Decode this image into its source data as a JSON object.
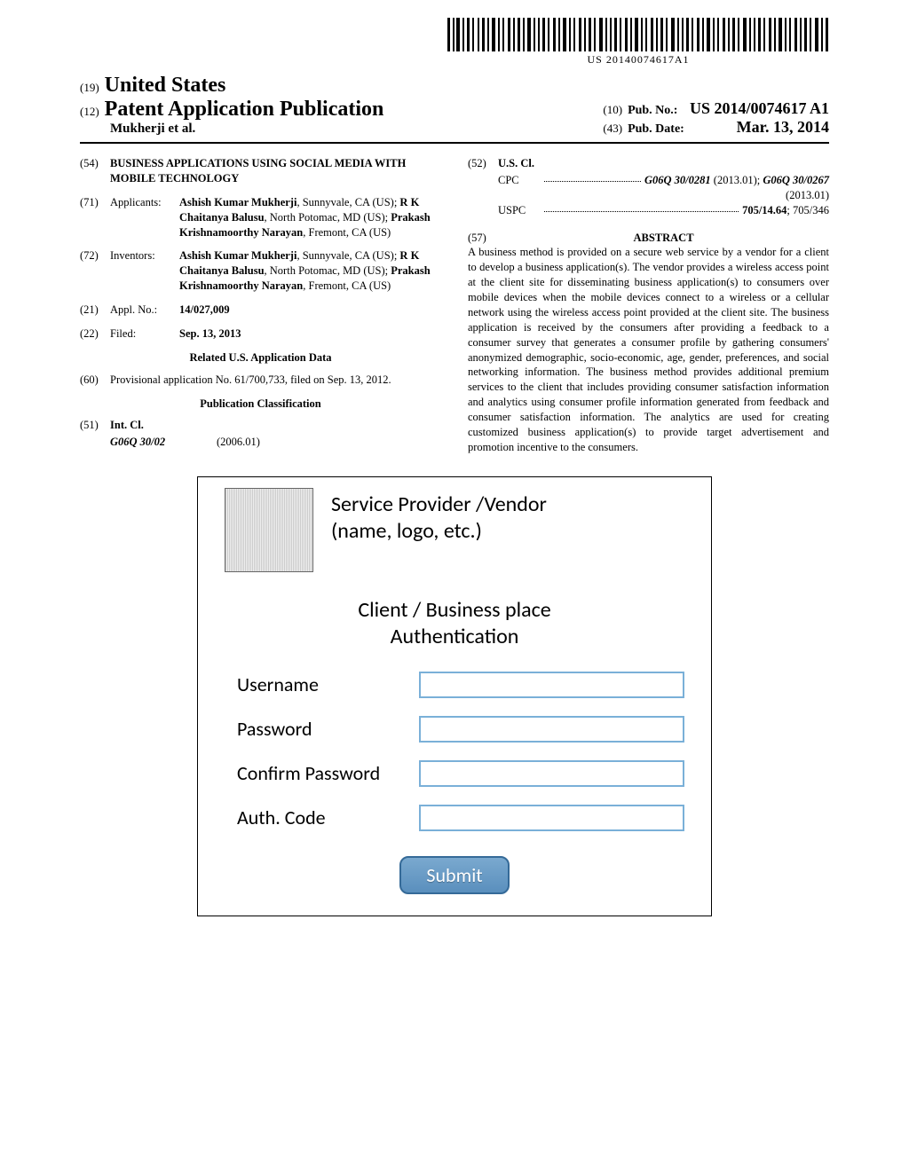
{
  "barcode": {
    "text": "US 20140074617A1"
  },
  "header": {
    "country_code": "(19)",
    "country": "United States",
    "pub_type_code": "(12)",
    "pub_type": "Patent Application Publication",
    "authors_line": "Mukherji et al.",
    "pub_no_code": "(10)",
    "pub_no_label": "Pub. No.:",
    "pub_no": "US 2014/0074617 A1",
    "pub_date_code": "(43)",
    "pub_date_label": "Pub. Date:",
    "pub_date": "Mar. 13, 2014"
  },
  "left": {
    "title_code": "(54)",
    "title": "BUSINESS APPLICATIONS USING SOCIAL MEDIA WITH MOBILE TECHNOLOGY",
    "applicants_code": "(71)",
    "applicants_label": "Applicants:",
    "applicants_html": "Ashish Kumar Mukherji|, Sunnyvale, CA (US); |R K Chaitanya Balusu|, North Potomac, MD (US); |Prakash Krishnamoorthy Narayan|, Fremont, CA (US)",
    "inventors_code": "(72)",
    "inventors_label": "Inventors:",
    "inventors_html": "Ashish Kumar Mukherji|, Sunnyvale, CA (US); |R K Chaitanya Balusu|, North Potomac, MD (US); |Prakash Krishnamoorthy Narayan|, Fremont, CA (US)",
    "appl_no_code": "(21)",
    "appl_no_label": "Appl. No.:",
    "appl_no": "14/027,009",
    "filed_code": "(22)",
    "filed_label": "Filed:",
    "filed": "Sep. 13, 2013",
    "related_head": "Related U.S. Application Data",
    "provisional_code": "(60)",
    "provisional": "Provisional application No. 61/700,733, filed on Sep. 13, 2012.",
    "pubclass_head": "Publication Classification",
    "intcl_code": "(51)",
    "intcl_label": "Int. Cl.",
    "intcl_value": "G06Q 30/02",
    "intcl_date": "(2006.01)"
  },
  "right": {
    "uscl_code": "(52)",
    "uscl_label": "U.S. Cl.",
    "cpc_label": "CPC",
    "cpc_value1": "G06Q 30/0281",
    "cpc_date1": "(2013.01);",
    "cpc_value2": "G06Q 30/0267",
    "cpc_date2": "(2013.01)",
    "uspc_label": "USPC",
    "uspc_value": "705/14.64",
    "uspc_extra": "; 705/346",
    "abstract_code": "(57)",
    "abstract_label": "ABSTRACT",
    "abstract": "A business method is provided on a secure web service by a vendor for a client to develop a business application(s). The vendor provides a wireless access point at the client site for disseminating business application(s) to consumers over mobile devices when the mobile devices connect to a wireless or a cellular network using the wireless access point provided at the client site. The business application is received by the consumers after providing a feedback to a consumer survey that generates a consumer profile by gathering consumers' anonymized demographic, socio-economic, age, gender, preferences, and social networking information. The business method provides additional premium services to the client that includes providing consumer satisfaction information and analytics using consumer profile information generated from feedback and consumer satisfaction information. The analytics are used for creating customized business application(s) to provide target advertisement and promotion incentive to the consumers."
  },
  "figure": {
    "vendor_line1": "Service Provider /Vendor",
    "vendor_line2": "(name, logo, etc.)",
    "auth_line1": "Client / Business place",
    "auth_line2": "Authentication",
    "username": "Username",
    "password": "Password",
    "confirm": "Confirm Password",
    "authcode": "Auth. Code",
    "submit": "Submit"
  },
  "colors": {
    "input_border": "#7ab0d8",
    "button_border": "#356a98",
    "button_grad_top": "#7aa9cf",
    "button_grad_bot": "#5a8fbd"
  }
}
